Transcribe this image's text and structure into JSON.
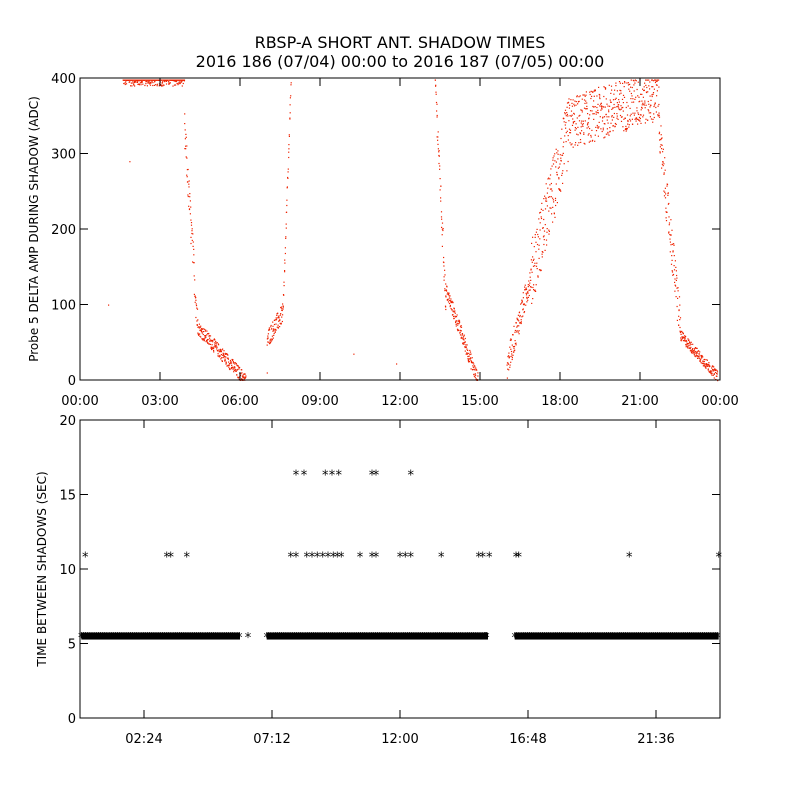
{
  "figure": {
    "title_line1": "RBSP-A SHORT ANT. SHADOW TIMES",
    "title_line2": "2016 186 (07/04) 00:00 to 2016 187 (07/05) 00:00"
  },
  "colors": {
    "top_points": "#ee2200",
    "bottom_points": "#000000",
    "axes": "#000000",
    "background": "#ffffff"
  },
  "chart_data": [
    {
      "type": "scatter",
      "ylabel": "Probe 5 DELTA AMP DURING SHADOW (ADC)",
      "xlim": [
        0,
        24
      ],
      "ylim": [
        0,
        400
      ],
      "x_unit": "hours",
      "x_ticks": [
        {
          "v": 0,
          "label": "00:00"
        },
        {
          "v": 3,
          "label": "03:00"
        },
        {
          "v": 6,
          "label": "06:00"
        },
        {
          "v": 9,
          "label": "09:00"
        },
        {
          "v": 12,
          "label": "12:00"
        },
        {
          "v": 15,
          "label": "15:00"
        },
        {
          "v": 18,
          "label": "18:00"
        },
        {
          "v": 21,
          "label": "21:00"
        },
        {
          "v": 24,
          "label": "00:00"
        }
      ],
      "y_ticks": [
        {
          "v": 0,
          "label": "0"
        },
        {
          "v": 100,
          "label": "100"
        },
        {
          "v": 200,
          "label": "200"
        },
        {
          "v": 300,
          "label": "300"
        },
        {
          "v": 400,
          "label": "400"
        }
      ],
      "grid": false,
      "segments": [
        {
          "t0": 1.6,
          "t1": 3.9,
          "y0": 400,
          "y1": 400,
          "spread": 20
        },
        {
          "t0": 3.9,
          "t1": 4.4,
          "y0": 330,
          "y1": 70,
          "spread": 50
        },
        {
          "t0": 4.4,
          "t1": 6.2,
          "y0": 70,
          "y1": 0,
          "spread": 18
        },
        {
          "t0": 7.0,
          "t1": 7.6,
          "y0": 55,
          "y1": 90,
          "spread": 25
        },
        {
          "t0": 7.6,
          "t1": 7.9,
          "y0": 95,
          "y1": 400,
          "spread": 12
        },
        {
          "t0": 13.3,
          "t1": 13.7,
          "y0": 400,
          "y1": 100,
          "spread": 40
        },
        {
          "t0": 13.7,
          "t1": 14.9,
          "y0": 120,
          "y1": 0,
          "spread": 20
        },
        {
          "t0": 16.0,
          "t1": 16.9,
          "y0": 20,
          "y1": 140,
          "spread": 35
        },
        {
          "t0": 16.9,
          "t1": 18.3,
          "y0": 140,
          "y1": 330,
          "spread": 90
        },
        {
          "t0": 18.3,
          "t1": 21.7,
          "y0": 340,
          "y1": 380,
          "spread": 70
        },
        {
          "t0": 21.7,
          "t1": 22.5,
          "y0": 330,
          "y1": 70,
          "spread": 60
        },
        {
          "t0": 22.5,
          "t1": 23.9,
          "y0": 60,
          "y1": 5,
          "spread": 14
        }
      ],
      "isolated_points": [
        {
          "x": 1.05,
          "y": 100
        },
        {
          "x": 1.85,
          "y": 290
        },
        {
          "x": 10.25,
          "y": 35
        },
        {
          "x": 11.85,
          "y": 22
        },
        {
          "x": 7.0,
          "y": 10
        }
      ]
    },
    {
      "type": "scatter",
      "ylabel": "TIME BETWEEN SHADOWS (SEC)",
      "xlim": [
        0,
        24
      ],
      "ylim": [
        0,
        20
      ],
      "x_unit": "hours",
      "x_ticks": [
        {
          "v": 2.4,
          "label": "02:24"
        },
        {
          "v": 7.2,
          "label": "07:12"
        },
        {
          "v": 12.0,
          "label": "12:00"
        },
        {
          "v": 16.8,
          "label": "16:48"
        },
        {
          "v": 21.6,
          "label": "21:36"
        }
      ],
      "y_ticks": [
        {
          "v": 0,
          "label": "0"
        },
        {
          "v": 5,
          "label": "5"
        },
        {
          "v": 10,
          "label": "10"
        },
        {
          "v": 15,
          "label": "15"
        },
        {
          "v": 20,
          "label": "20"
        }
      ],
      "grid": false,
      "baseline_value": 5.5,
      "baseline_ranges": [
        [
          0.05,
          6.0
        ],
        [
          7.0,
          15.3
        ],
        [
          16.3,
          23.95
        ]
      ],
      "points": [
        {
          "x": 6.3,
          "y": 5.5
        },
        {
          "x": 15.2,
          "y": 5.5
        },
        {
          "x": 0.2,
          "y": 10.9
        },
        {
          "x": 3.25,
          "y": 10.9
        },
        {
          "x": 3.4,
          "y": 10.9
        },
        {
          "x": 4.0,
          "y": 10.9
        },
        {
          "x": 7.9,
          "y": 10.9
        },
        {
          "x": 8.1,
          "y": 10.9
        },
        {
          "x": 8.5,
          "y": 10.9
        },
        {
          "x": 8.7,
          "y": 10.9
        },
        {
          "x": 8.9,
          "y": 10.9
        },
        {
          "x": 9.1,
          "y": 10.9
        },
        {
          "x": 9.3,
          "y": 10.9
        },
        {
          "x": 9.5,
          "y": 10.9
        },
        {
          "x": 9.65,
          "y": 10.9
        },
        {
          "x": 9.8,
          "y": 10.9
        },
        {
          "x": 10.5,
          "y": 10.9
        },
        {
          "x": 10.95,
          "y": 10.9
        },
        {
          "x": 11.1,
          "y": 10.9
        },
        {
          "x": 12.0,
          "y": 10.9
        },
        {
          "x": 12.2,
          "y": 10.9
        },
        {
          "x": 12.4,
          "y": 10.9
        },
        {
          "x": 13.55,
          "y": 10.9
        },
        {
          "x": 14.95,
          "y": 10.9
        },
        {
          "x": 15.1,
          "y": 10.9
        },
        {
          "x": 15.35,
          "y": 10.9
        },
        {
          "x": 16.35,
          "y": 10.9
        },
        {
          "x": 16.45,
          "y": 10.9
        },
        {
          "x": 20.6,
          "y": 10.9
        },
        {
          "x": 23.95,
          "y": 10.9
        },
        {
          "x": 8.1,
          "y": 16.4
        },
        {
          "x": 8.4,
          "y": 16.4
        },
        {
          "x": 9.2,
          "y": 16.4
        },
        {
          "x": 9.45,
          "y": 16.4
        },
        {
          "x": 9.7,
          "y": 16.4
        },
        {
          "x": 10.95,
          "y": 16.4
        },
        {
          "x": 11.1,
          "y": 16.4
        },
        {
          "x": 12.4,
          "y": 16.4
        }
      ]
    }
  ]
}
